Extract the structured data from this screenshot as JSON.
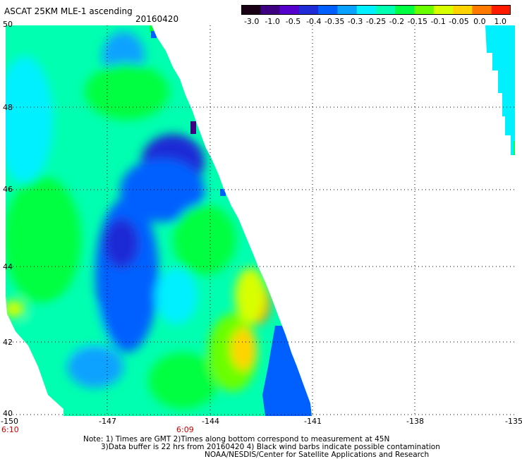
{
  "title": "ASCAT 25KM MLE-1 ascending",
  "date": "20160420",
  "colorbar": {
    "ticks": [
      "-3.0",
      "-1.0",
      "-0.5",
      "-0.4",
      "-0.35",
      "-0.3",
      "-0.25",
      "-0.2",
      "-0.15",
      "-0.1",
      "-0.05",
      "0.0",
      "1.0"
    ],
    "colors": [
      "#1a0014",
      "#3d0080",
      "#5500cc",
      "#1f2bd6",
      "#0060ff",
      "#0aa2ff",
      "#00f0ff",
      "#00ffb0",
      "#00ff40",
      "#6aff00",
      "#d8ff00",
      "#ffd400",
      "#ff7a00",
      "#ff1a00"
    ]
  },
  "axes": {
    "x_ticks": [
      "-150",
      "-147",
      "-144",
      "-141",
      "-138",
      "-135"
    ],
    "y_ticks": [
      "50",
      "48",
      "46",
      "44",
      "42",
      "40"
    ],
    "time_labels": [
      "6:10",
      "6:09"
    ]
  },
  "notes": [
    "Note: 1) Times are GMT 2)Times along bottom correspond to measurement at 45N",
    "3)Data buffer is 22 hrs from 20160420 4) Black wind barbs indicate possible contamination",
    "NOAA/NESDIS/Center for Satellite Applications and Research"
  ],
  "colors": {
    "axis": "#000000",
    "grid": "#000000",
    "time_label": "#cc0000",
    "background": "#ffffff"
  }
}
